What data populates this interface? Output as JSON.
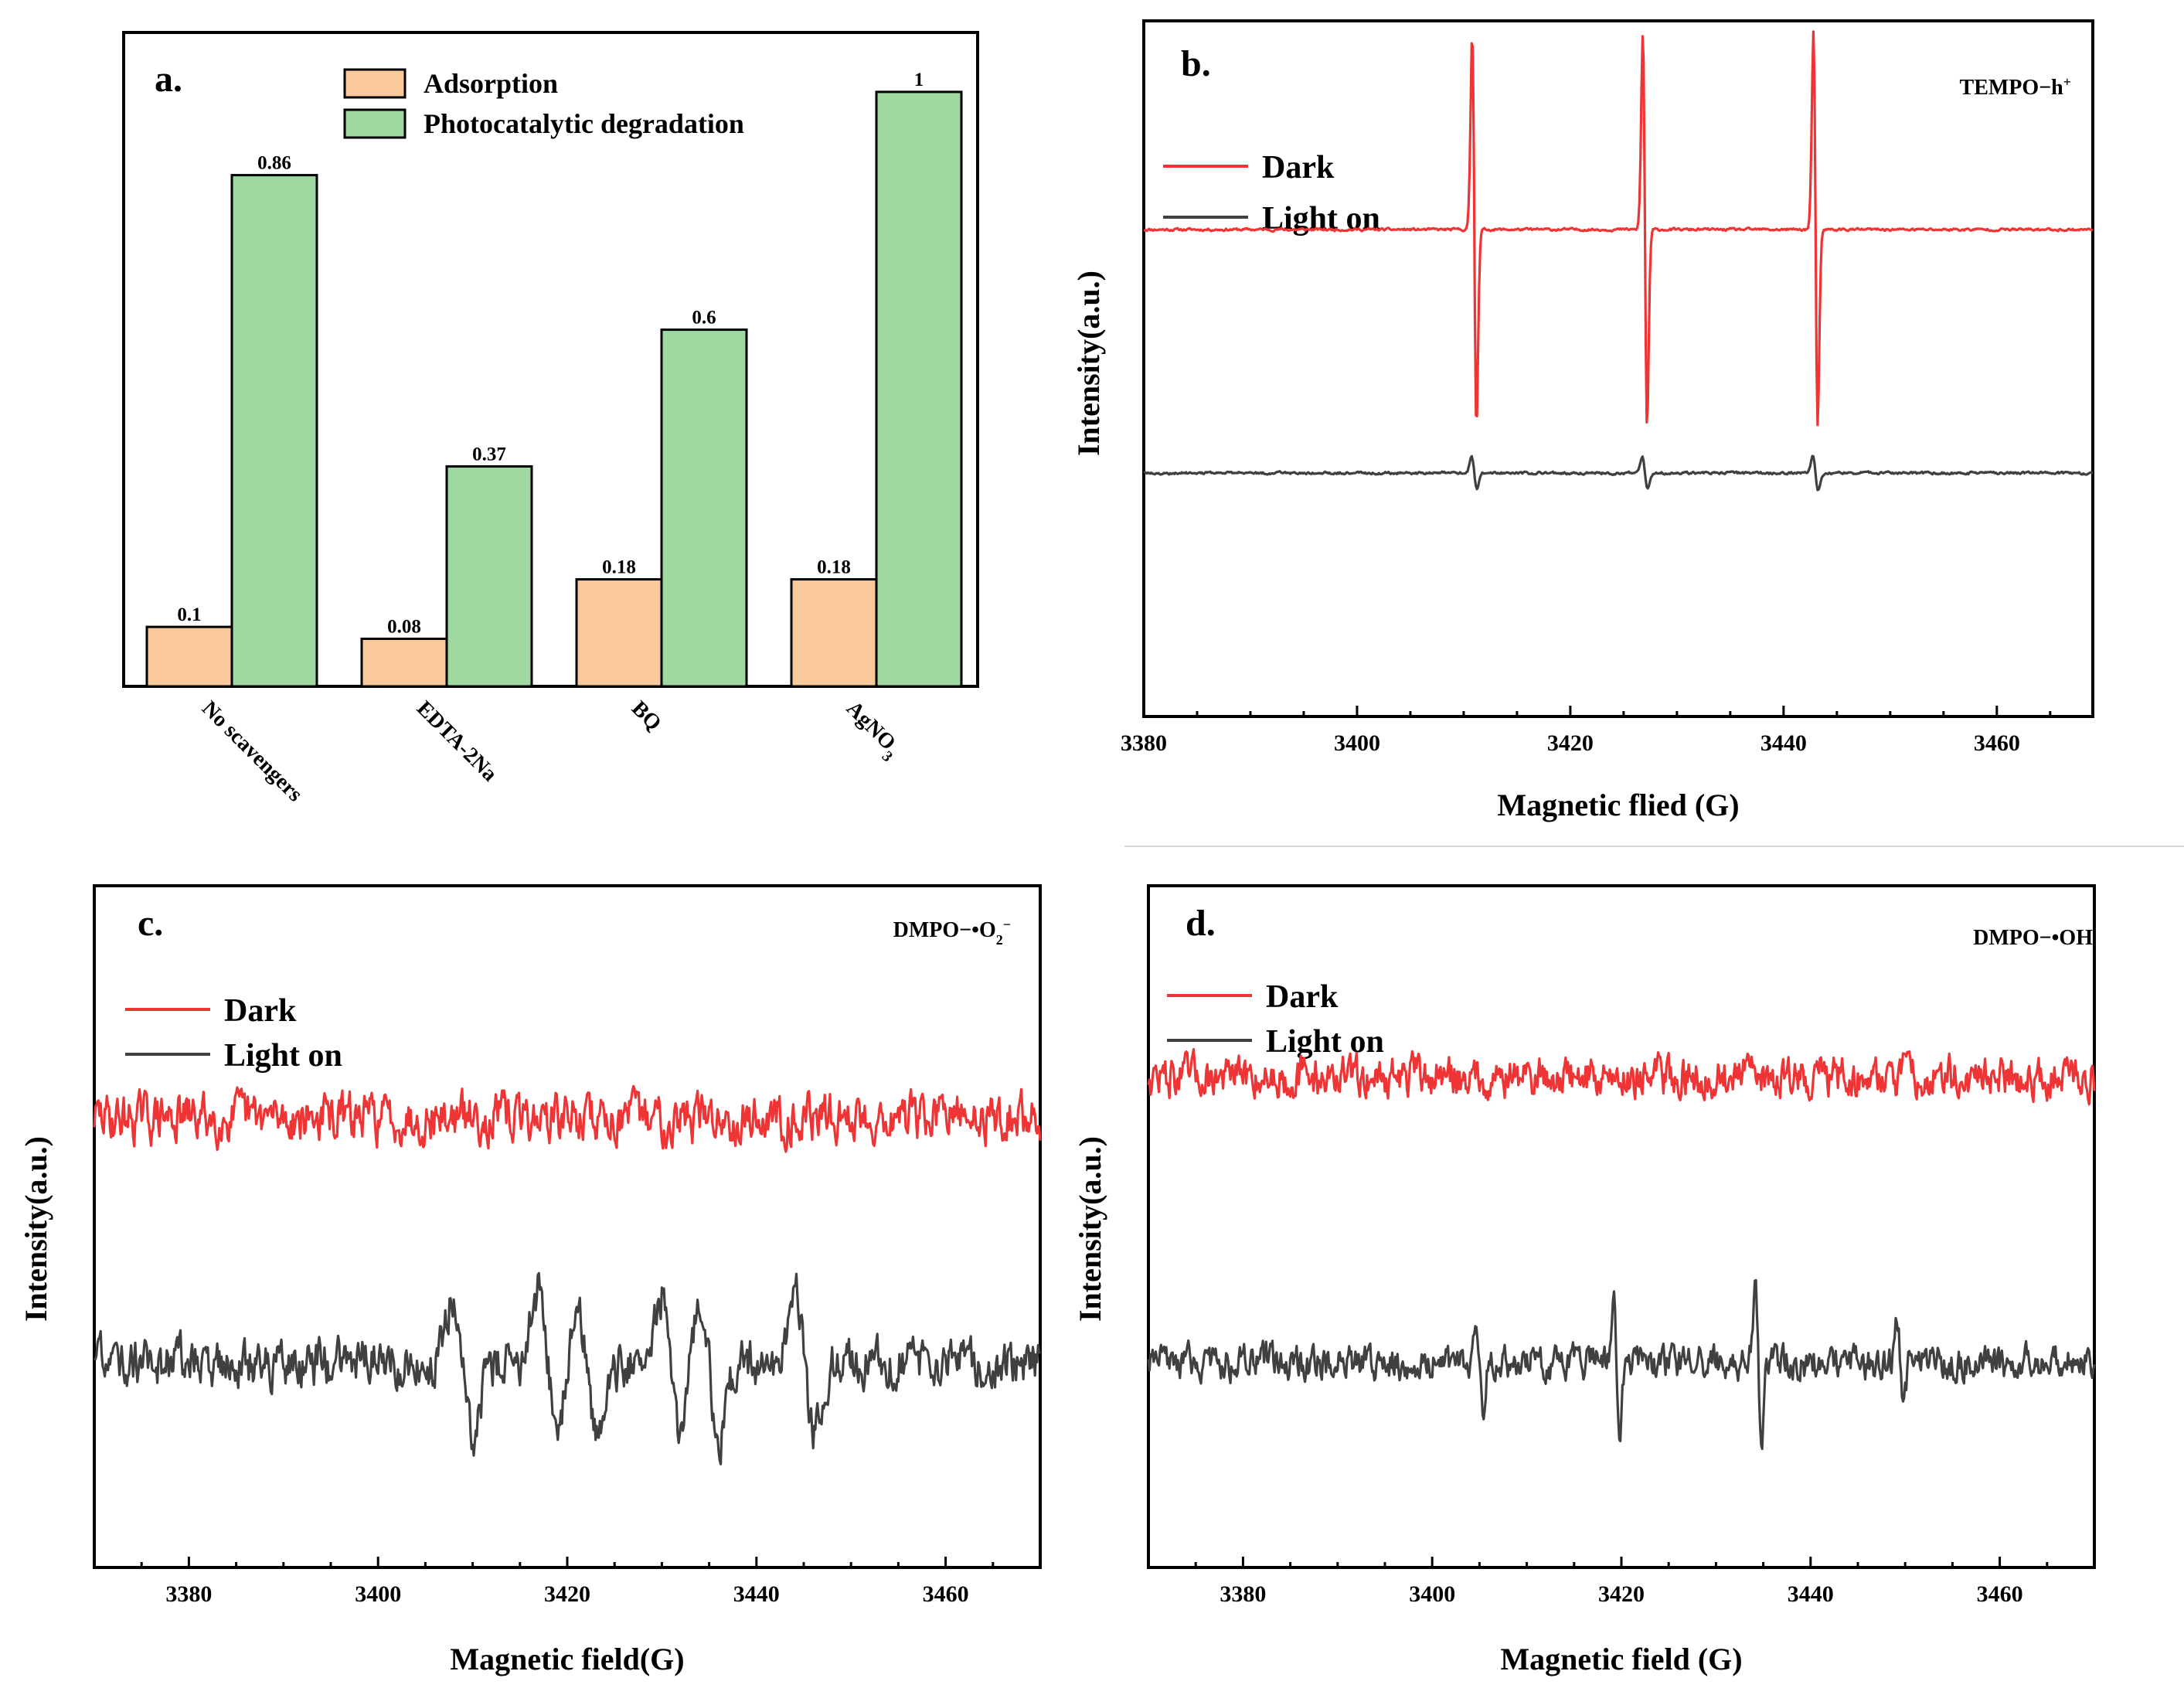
{
  "chart_data": [
    {
      "type": "bar",
      "panel_label": "a.",
      "categories": [
        "No scavengers",
        "EDTA-2Na",
        "BQ",
        "AgNO3"
      ],
      "series": [
        {
          "name": "Adsorption",
          "color": "#f9c89b",
          "values": [
            0.1,
            0.08,
            0.18,
            0.18
          ]
        },
        {
          "name": "Photocatalytic degradation",
          "color": "#9fd9a0",
          "values": [
            0.86,
            0.37,
            0.6,
            1
          ]
        }
      ],
      "ylim": [
        0,
        1.1
      ],
      "xlabel": "",
      "ylabel": "",
      "legend_position": "top-center"
    },
    {
      "type": "line",
      "panel_label": "b.",
      "tag": "TEMPO−h⁺",
      "xlabel": "Magnetic flied (G)",
      "ylabel": "Intensity(a.u.)",
      "xlim": [
        3380,
        3469
      ],
      "xticks": [
        3380,
        3400,
        3420,
        3440,
        3460
      ],
      "series": [
        {
          "name": "Dark",
          "color": "#ee3434",
          "baseline": 0.7,
          "noise": 0.0015,
          "line_centers": [
            3411,
            3427,
            3443
          ],
          "amplitude": 0.3,
          "width": 0.28
        },
        {
          "name": "Light on",
          "color": "#404040",
          "baseline": 0.35,
          "noise": 0.0015,
          "line_centers": [
            3411,
            3427,
            3443
          ],
          "amplitude": 0.025,
          "width": 0.35
        }
      ]
    },
    {
      "type": "line",
      "panel_label": "c.",
      "tag": "DMPO−•O₂⁻",
      "xlabel": "Magnetic field(G)",
      "ylabel": "Intensity(a.u.)",
      "xlim": [
        3370,
        3470
      ],
      "xticks": [
        3380,
        3400,
        3420,
        3440,
        3460
      ],
      "series": [
        {
          "name": "Dark",
          "color": "#ee3434",
          "baseline": 0.66,
          "noise": 0.028,
          "line_centers": [],
          "amplitude": 0,
          "width": 1
        },
        {
          "name": "Light on",
          "color": "#404040",
          "baseline": 0.3,
          "noise": 0.028,
          "line_centers": [
            3409,
            3418,
            3422,
            3431,
            3435,
            3445
          ],
          "amplitude": 0.11,
          "width": 1.4
        }
      ]
    },
    {
      "type": "line",
      "panel_label": "d.",
      "tag": "DMPO−•OH",
      "xlabel": "Magnetic field (G)",
      "ylabel": "Intensity(a.u.)",
      "xlim": [
        3370,
        3470
      ],
      "xticks": [
        3380,
        3400,
        3420,
        3440,
        3460
      ],
      "series": [
        {
          "name": "Dark",
          "color": "#ee3434",
          "baseline": 0.72,
          "noise": 0.024,
          "line_centers": [],
          "amplitude": 0,
          "width": 1
        },
        {
          "name": "Light on",
          "color": "#404040",
          "baseline": 0.3,
          "noise": 0.02,
          "line_centers": [
            3405,
            3419.5,
            3434.5,
            3449.5
          ],
          "amplitude": 0.12,
          "width": 0.45,
          "relative_amplitudes": [
            0.6,
            1.0,
            1.0,
            0.6
          ]
        }
      ]
    }
  ]
}
